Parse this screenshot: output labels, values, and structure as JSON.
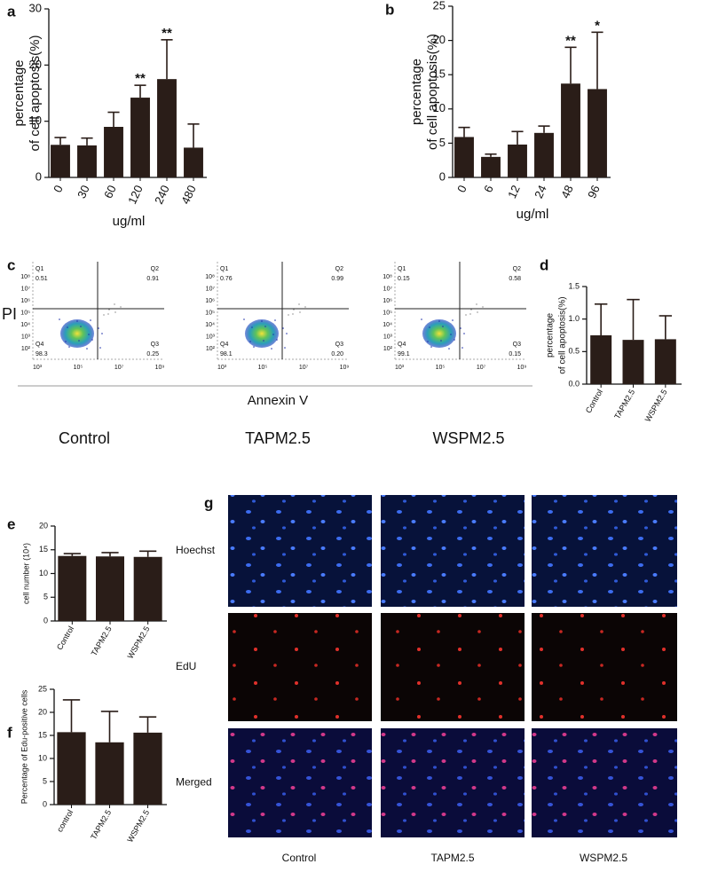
{
  "chart_data": [
    {
      "type": "bar",
      "panel_label": "a",
      "color": "#2a1d18",
      "categories": [
        "0",
        "30",
        "60",
        "120",
        "240",
        "480"
      ],
      "values": [
        5.8,
        5.7,
        9.0,
        14.2,
        17.5,
        5.3
      ],
      "errors": [
        1.3,
        1.3,
        2.6,
        2.2,
        7.0,
        4.2
      ],
      "significance": [
        null,
        null,
        null,
        "**",
        "**",
        null
      ],
      "ylim": [
        0,
        30
      ],
      "yticks": [
        0,
        10,
        20,
        30
      ],
      "y_label": [
        "percentage",
        "of cell apoptosis(%)"
      ],
      "x_label": "ug/ml"
    },
    {
      "type": "bar",
      "panel_label": "b",
      "color": "#2a1d18",
      "categories": [
        "0",
        "6",
        "12",
        "24",
        "48",
        "96"
      ],
      "values": [
        5.9,
        3.0,
        4.8,
        6.5,
        13.7,
        12.9
      ],
      "errors": [
        1.4,
        0.4,
        1.9,
        1.0,
        5.3,
        8.3
      ],
      "significance": [
        null,
        null,
        null,
        null,
        "**",
        "*"
      ],
      "ylim": [
        0,
        25
      ],
      "yticks": [
        0,
        5,
        10,
        15,
        20,
        25
      ],
      "y_label": [
        "percentage",
        "of cell apoptosis(%)"
      ],
      "x_label": "ug/ml"
    },
    {
      "type": "bar",
      "panel_label": "d",
      "color": "#2a1d18",
      "categories": [
        "Control",
        "TAPM2.5",
        "WSPM2.5"
      ],
      "values": [
        0.75,
        0.68,
        0.69
      ],
      "errors": [
        0.48,
        0.62,
        0.36
      ],
      "ylim": [
        0,
        1.5
      ],
      "yticks": [
        {
          "value": 0,
          "label": "0.0"
        },
        0.5,
        {
          "value": 1,
          "label": "1.0"
        },
        1.5
      ],
      "y_label": [
        "percentage",
        "of cell apoptosis(%)"
      ]
    },
    {
      "type": "bar",
      "panel_label": "e",
      "color": "#2a1d18",
      "categories": [
        "Control",
        "TAPM2.5",
        "WSPM2.5"
      ],
      "values": [
        13.7,
        13.6,
        13.5
      ],
      "errors": [
        0.5,
        0.8,
        1.2
      ],
      "ylim": [
        0,
        20
      ],
      "yticks": [
        0,
        5,
        10,
        15,
        20
      ],
      "y_label": [
        "cell number (10⁴)"
      ]
    },
    {
      "type": "bar",
      "panel_label": "f",
      "color": "#2a1d18",
      "categories": [
        "control",
        "TAPM2.5",
        "WSPM2.5"
      ],
      "values": [
        15.7,
        13.5,
        15.6
      ],
      "errors": [
        7.0,
        6.7,
        3.4
      ],
      "ylim": [
        0,
        25
      ],
      "yticks": [
        0,
        5,
        10,
        15,
        20,
        25
      ],
      "y_label": [
        "Percentage of Edu-positive cells"
      ]
    }
  ],
  "flow": {
    "panel_label": "c",
    "x_label": "Annexin V",
    "y_label": "PI",
    "ytick_labels": [
      "10⁸",
      "10⁷",
      "10⁶",
      "10⁵",
      "10⁴",
      "10³",
      "10²"
    ],
    "xtick_labels": [
      "10³",
      "10⁵",
      "10⁷",
      "10⁹"
    ],
    "plots": [
      {
        "name": "Control",
        "quadrants": [
          {
            "id": "Q1",
            "value": "0.51"
          },
          {
            "id": "Q2",
            "value": "0.91"
          },
          {
            "id": "Q3",
            "value": "0.25"
          },
          {
            "id": "Q4",
            "value": "98.3"
          }
        ]
      },
      {
        "name": "TAPM2.5",
        "quadrants": [
          {
            "id": "Q1",
            "value": "0.76"
          },
          {
            "id": "Q2",
            "value": "0.99"
          },
          {
            "id": "Q3",
            "value": "0.20"
          },
          {
            "id": "Q4",
            "value": "98.1"
          }
        ]
      },
      {
        "name": "WSPM2.5",
        "quadrants": [
          {
            "id": "Q1",
            "value": "0.15"
          },
          {
            "id": "Q2",
            "value": "0.58"
          },
          {
            "id": "Q3",
            "value": "0.15"
          },
          {
            "id": "Q4",
            "value": "99.1"
          }
        ]
      }
    ]
  },
  "images": {
    "panel_label": "g",
    "rows": [
      "Hoechst",
      "EdU",
      "Merged"
    ],
    "columns": [
      "Control",
      "TAPM2.5",
      "WSPM2.5"
    ]
  }
}
